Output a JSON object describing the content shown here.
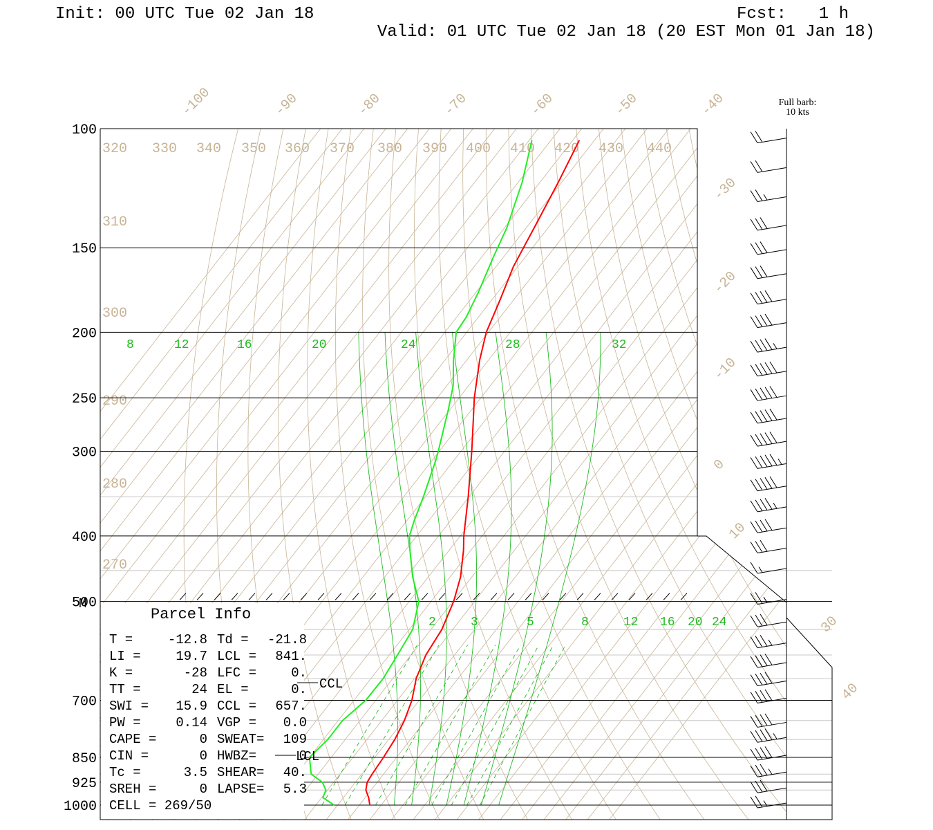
{
  "header": {
    "init": "Init: 00 UTC Tue 02 Jan 18",
    "fcst_label": "Fcst:",
    "fcst_value": "1 h",
    "valid": "Valid: 01 UTC Tue 02 Jan 18 (20 EST Mon 01 Jan 18)"
  },
  "barb_legend": {
    "line1": "Full barb:",
    "line2": "10 kts"
  },
  "chart_data": {
    "type": "line",
    "name": "skew-T log-P sounding",
    "y_axis": {
      "type": "log-pressure",
      "unit": "hPa",
      "ticks": [
        "100",
        "150",
        "200",
        "250",
        "300",
        "400",
        "500",
        "700",
        "850",
        "925",
        "1000"
      ],
      "range": [
        1000,
        100
      ]
    },
    "isotherm_labels": [
      "-100",
      "-90",
      "-80",
      "-70",
      "-60",
      "-50",
      "-40",
      "-30",
      "-20",
      "-10",
      "0",
      "10",
      "30",
      "40"
    ],
    "theta_labels": [
      "320",
      "330",
      "340",
      "350",
      "360",
      "370",
      "380",
      "390",
      "400",
      "410",
      "420",
      "430",
      "440",
      "310",
      "300",
      "290",
      "280",
      "270"
    ],
    "mixing_ratio_labels_top": [
      "8",
      "12",
      "16",
      "20",
      "24",
      "28",
      "32"
    ],
    "mixing_ratio_labels_bottom": [
      "2",
      "3",
      "5",
      "8",
      "12",
      "16",
      "20",
      "24"
    ],
    "series": [
      {
        "name": "Temperature",
        "color": "#ff0000",
        "points": [
          {
            "p": 1000,
            "t": 2.4
          },
          {
            "p": 975,
            "t": 0.8
          },
          {
            "p": 950,
            "t": -1.2
          },
          {
            "p": 925,
            "t": -2.3
          },
          {
            "p": 900,
            "t": -2.6
          },
          {
            "p": 850,
            "t": -3.0
          },
          {
            "p": 800,
            "t": -3.6
          },
          {
            "p": 750,
            "t": -4.8
          },
          {
            "p": 700,
            "t": -6.7
          },
          {
            "p": 650,
            "t": -9.6
          },
          {
            "p": 600,
            "t": -11.6
          },
          {
            "p": 550,
            "t": -12.5
          },
          {
            "p": 500,
            "t": -14.8
          },
          {
            "p": 460,
            "t": -17.6
          },
          {
            "p": 420,
            "t": -21.7
          },
          {
            "p": 400,
            "t": -24.2
          },
          {
            "p": 350,
            "t": -30.2
          },
          {
            "p": 300,
            "t": -37.5
          },
          {
            "p": 270,
            "t": -42.7
          },
          {
            "p": 250,
            "t": -46.5
          },
          {
            "p": 220,
            "t": -52.0
          },
          {
            "p": 200,
            "t": -55.5
          },
          {
            "p": 180,
            "t": -58.0
          },
          {
            "p": 160,
            "t": -61.0
          },
          {
            "p": 140,
            "t": -63.2
          },
          {
            "p": 120,
            "t": -65.8
          },
          {
            "p": 104,
            "t": -68.5
          }
        ]
      },
      {
        "name": "Dewpoint",
        "color": "#22ee22",
        "points": [
          {
            "p": 1000,
            "t": -5.8
          },
          {
            "p": 975,
            "t": -9.7
          },
          {
            "p": 950,
            "t": -10.4
          },
          {
            "p": 925,
            "t": -12.6
          },
          {
            "p": 900,
            "t": -16.6
          },
          {
            "p": 850,
            "t": -20.0
          },
          {
            "p": 800,
            "t": -19.0
          },
          {
            "p": 750,
            "t": -19.0
          },
          {
            "p": 700,
            "t": -17.3
          },
          {
            "p": 650,
            "t": -17.2
          },
          {
            "p": 600,
            "t": -18.1
          },
          {
            "p": 550,
            "t": -19.2
          },
          {
            "p": 500,
            "t": -22.8
          },
          {
            "p": 460,
            "t": -28.6
          },
          {
            "p": 420,
            "t": -34.0
          },
          {
            "p": 400,
            "t": -36.7
          },
          {
            "p": 380,
            "t": -38.3
          },
          {
            "p": 350,
            "t": -40.5
          },
          {
            "p": 310,
            "t": -44.1
          },
          {
            "p": 300,
            "t": -45.2
          },
          {
            "p": 260,
            "t": -50.4
          },
          {
            "p": 240,
            "t": -53.5
          },
          {
            "p": 220,
            "t": -58.0
          },
          {
            "p": 200,
            "t": -62.4
          },
          {
            "p": 190,
            "t": -62.8
          },
          {
            "p": 175,
            "t": -64.4
          },
          {
            "p": 155,
            "t": -67.3
          },
          {
            "p": 140,
            "t": -69.5
          },
          {
            "p": 120,
            "t": -74.1
          },
          {
            "p": 104,
            "t": -79.4
          }
        ]
      }
    ],
    "grid": true,
    "markers": [
      "CCL",
      "LCL",
      "M"
    ]
  },
  "parcel_info": {
    "title": "Parcel Info",
    "rows": [
      {
        "l1": "T  =",
        "v1": "-12.8",
        "l2": "Td =",
        "v2": "-21.8"
      },
      {
        "l1": "LI =",
        "v1": "19.7",
        "l2": "LCL =",
        "v2": "841."
      },
      {
        "l1": "K  =",
        "v1": "-28",
        "l2": "LFC =",
        "v2": "0."
      },
      {
        "l1": "TT =",
        "v1": "24",
        "l2": "EL  =",
        "v2": "0."
      },
      {
        "l1": "SWI =",
        "v1": "15.9",
        "l2": "CCL =",
        "v2": "657."
      },
      {
        "l1": "PW =",
        "v1": "0.14",
        "l2": "VGP =",
        "v2": "0.0"
      },
      {
        "l1": "CAPE =",
        "v1": "0",
        "l2": "SWEAT=",
        "v2": "109"
      },
      {
        "l1": "CIN =",
        "v1": "0",
        "l2": "HWBZ=",
        "v2": "0"
      },
      {
        "l1": "Tc =",
        "v1": "3.5",
        "l2": "SHEAR=",
        "v2": "40."
      },
      {
        "l1": "SREH =",
        "v1": "0",
        "l2": "LAPSE=",
        "v2": "5.3"
      }
    ],
    "cell": "CELL = 269/50"
  },
  "wind_barbs": [
    {
      "p": 104,
      "kts": 20
    },
    {
      "p": 115,
      "kts": 20
    },
    {
      "p": 127,
      "kts": 25
    },
    {
      "p": 140,
      "kts": 30
    },
    {
      "p": 152,
      "kts": 30
    },
    {
      "p": 165,
      "kts": 30
    },
    {
      "p": 180,
      "kts": 40
    },
    {
      "p": 195,
      "kts": 40
    },
    {
      "p": 212,
      "kts": 45
    },
    {
      "p": 230,
      "kts": 50
    },
    {
      "p": 250,
      "kts": 50
    },
    {
      "p": 270,
      "kts": 50
    },
    {
      "p": 292,
      "kts": 50
    },
    {
      "p": 315,
      "kts": 55
    },
    {
      "p": 340,
      "kts": 50
    },
    {
      "p": 365,
      "kts": 45
    },
    {
      "p": 392,
      "kts": 40
    },
    {
      "p": 420,
      "kts": 30
    },
    {
      "p": 450,
      "kts": 15
    },
    {
      "p": 500,
      "kts": 25
    },
    {
      "p": 540,
      "kts": 30
    },
    {
      "p": 580,
      "kts": 35
    },
    {
      "p": 620,
      "kts": 40
    },
    {
      "p": 660,
      "kts": 40
    },
    {
      "p": 700,
      "kts": 40
    },
    {
      "p": 760,
      "kts": 40
    },
    {
      "p": 800,
      "kts": 45
    },
    {
      "p": 850,
      "kts": 40
    },
    {
      "p": 900,
      "kts": 35
    },
    {
      "p": 950,
      "kts": 30
    },
    {
      "p": 1000,
      "kts": 25
    }
  ],
  "colors": {
    "isotherm": "#c8b496",
    "mixing_ratio": "#22bb22",
    "temperature": "#ff0000",
    "dewpoint": "#22ee22"
  }
}
